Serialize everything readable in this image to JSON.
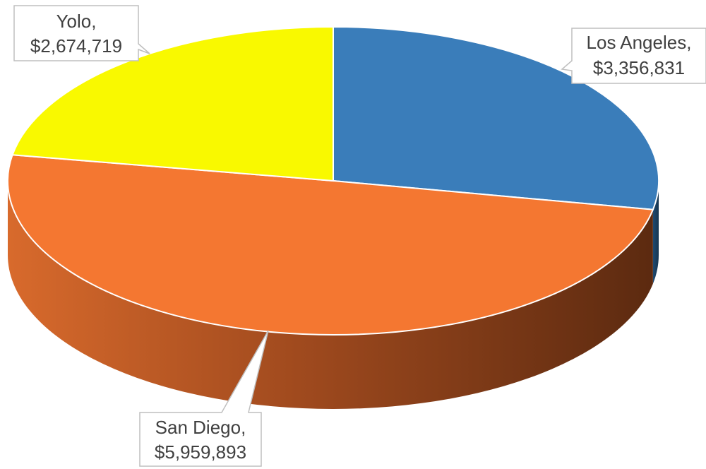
{
  "chart_data": {
    "type": "pie3d",
    "categories": [
      "Los Angeles,",
      "San Diego,",
      "Yolo,"
    ],
    "values": [
      3356831,
      5959893,
      2674719
    ],
    "value_labels": [
      "$3,356,831",
      "$5,959,893",
      "$2,674,719"
    ],
    "colors": [
      "#3a7dba",
      "#f47731",
      "#f9f900"
    ]
  }
}
